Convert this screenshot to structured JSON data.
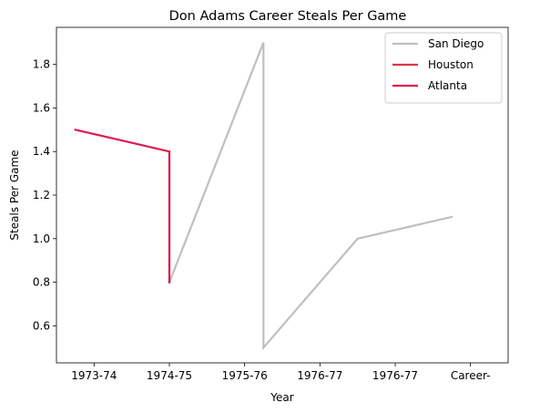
{
  "chart_data": {
    "type": "line",
    "title": "Don Adams  Career Steals Per Game",
    "xlabel": "Year",
    "ylabel": "Steals Per Game",
    "x_tick_labels": [
      "1973-74",
      "1974-75",
      "1975-76",
      "1976-77",
      "1976-77",
      "Career-"
    ],
    "y_ticks": [
      0.6,
      0.8,
      1.0,
      1.2,
      1.4,
      1.6,
      1.8
    ],
    "y_tick_labels": [
      "0.6",
      "0.8",
      "1.0",
      "1.2",
      "1.4",
      "1.6",
      "1.8"
    ],
    "xlim": [
      -0.5,
      5.5
    ],
    "ylim": [
      0.43,
      1.97
    ],
    "grid": false,
    "legend_position": "top-right",
    "series": [
      {
        "name": "San Diego",
        "color": "#bfbfbf",
        "points": [
          [
            1.0,
            0.8
          ],
          [
            2.25,
            1.9
          ],
          [
            2.25,
            0.5
          ],
          [
            3.5,
            1.0
          ],
          [
            4.75,
            1.1
          ]
        ]
      },
      {
        "name": "Houston",
        "color": "#e0344a",
        "points": [
          [
            1.0,
            0.8
          ],
          [
            1.0,
            1.4
          ]
        ]
      },
      {
        "name": "Atlanta",
        "color": "#e0194f",
        "points": [
          [
            -0.25,
            1.5
          ],
          [
            1.0,
            1.4
          ],
          [
            1.0,
            0.8
          ]
        ]
      }
    ]
  }
}
